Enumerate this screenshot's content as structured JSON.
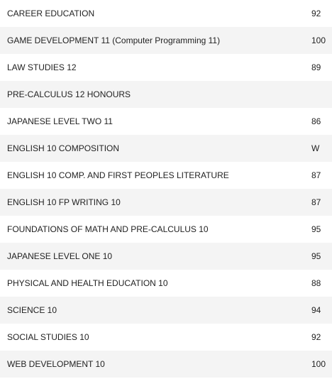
{
  "courses": [
    {
      "name": "CAREER EDUCATION",
      "grade": "92"
    },
    {
      "name": "GAME DEVELOPMENT 11 (Computer Programming 11)",
      "grade": "100"
    },
    {
      "name": "LAW STUDIES 12",
      "grade": "89"
    },
    {
      "name": "PRE-CALCULUS 12 HONOURS",
      "grade": ""
    },
    {
      "name": "JAPANESE LEVEL TWO 11",
      "grade": "86"
    },
    {
      "name": "ENGLISH 10 COMPOSITION",
      "grade": "W"
    },
    {
      "name": "ENGLISH 10 COMP. AND FIRST PEOPLES LITERATURE",
      "grade": "87"
    },
    {
      "name": "ENGLISH 10 FP WRITING 10",
      "grade": "87"
    },
    {
      "name": "FOUNDATIONS OF MATH AND PRE-CALCULUS 10",
      "grade": "95"
    },
    {
      "name": "JAPANESE LEVEL ONE 10",
      "grade": "95"
    },
    {
      "name": "PHYSICAL AND HEALTH EDUCATION 10",
      "grade": "88"
    },
    {
      "name": "SCIENCE 10",
      "grade": "94"
    },
    {
      "name": "SOCIAL STUDIES 10",
      "grade": "92"
    },
    {
      "name": "WEB DEVELOPMENT 10",
      "grade": "100"
    }
  ]
}
